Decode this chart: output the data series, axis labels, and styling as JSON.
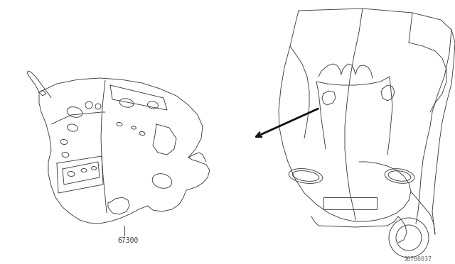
{
  "background_color": "#ffffff",
  "line_color": "#3a3a3a",
  "arrow_color": "#111111",
  "label_67300": "67300",
  "label_ref": "J6700037",
  "label_fontsize": 7,
  "ref_fontsize": 6,
  "fig_width": 6.4,
  "fig_height": 3.72,
  "dpi": 100
}
